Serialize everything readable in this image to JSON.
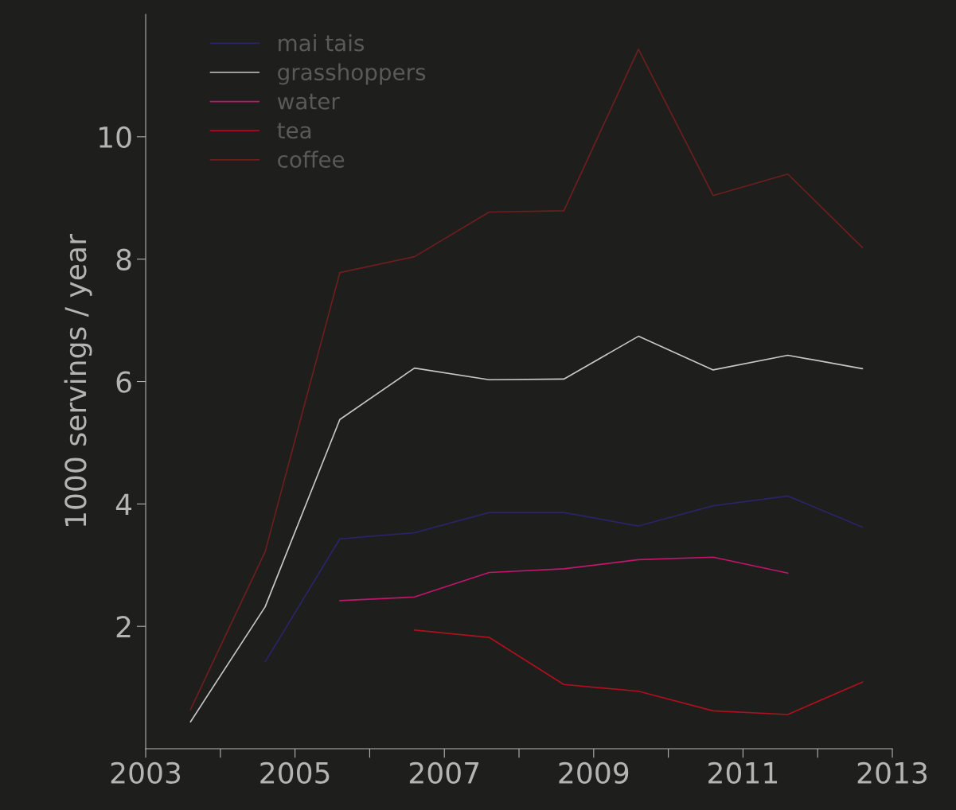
{
  "chart_data": {
    "type": "line",
    "ylabel": "1000 servings / year",
    "x": [
      2003.6,
      2004.6,
      2005.6,
      2006.6,
      2007.6,
      2008.6,
      2009.6,
      2010.6,
      2011.6,
      2012.6
    ],
    "series": [
      {
        "name": "mai tais",
        "color": "#2a2468",
        "values": [
          null,
          1.42,
          3.43,
          3.53,
          3.86,
          3.86,
          3.64,
          3.97,
          4.13,
          3.62
        ]
      },
      {
        "name": "grasshoppers",
        "color": "#c8c8c8",
        "values": [
          0.44,
          2.32,
          5.38,
          6.22,
          6.03,
          6.04,
          6.74,
          6.19,
          6.43,
          6.21
        ]
      },
      {
        "name": "water",
        "color": "#c0166e",
        "values": [
          null,
          null,
          2.42,
          2.48,
          2.88,
          2.94,
          3.09,
          3.13,
          2.87,
          null
        ]
      },
      {
        "name": "tea",
        "color": "#b0101e",
        "values": [
          null,
          null,
          null,
          1.94,
          1.82,
          1.05,
          0.94,
          0.62,
          0.56,
          1.09
        ]
      },
      {
        "name": "coffee",
        "color": "#6e1e1e",
        "values": [
          0.64,
          3.22,
          7.78,
          8.04,
          8.77,
          8.79,
          11.43,
          9.04,
          9.39,
          8.19
        ]
      }
    ],
    "xlim": [
      2003,
      2013
    ],
    "xticks": [
      2003,
      {
        "value": 2004,
        "label": null
      },
      2005,
      {
        "value": 2006,
        "label": null
      },
      2007,
      {
        "value": 2008,
        "label": null
      },
      2009,
      {
        "value": 2010,
        "label": null
      },
      2011,
      {
        "value": 2012,
        "label": null
      },
      2013
    ],
    "ylim": [
      0,
      12
    ],
    "yticks": [
      2,
      4,
      6,
      8,
      10
    ],
    "legend": "top left",
    "grid": false,
    "marker": "none",
    "line_style": "solid"
  }
}
